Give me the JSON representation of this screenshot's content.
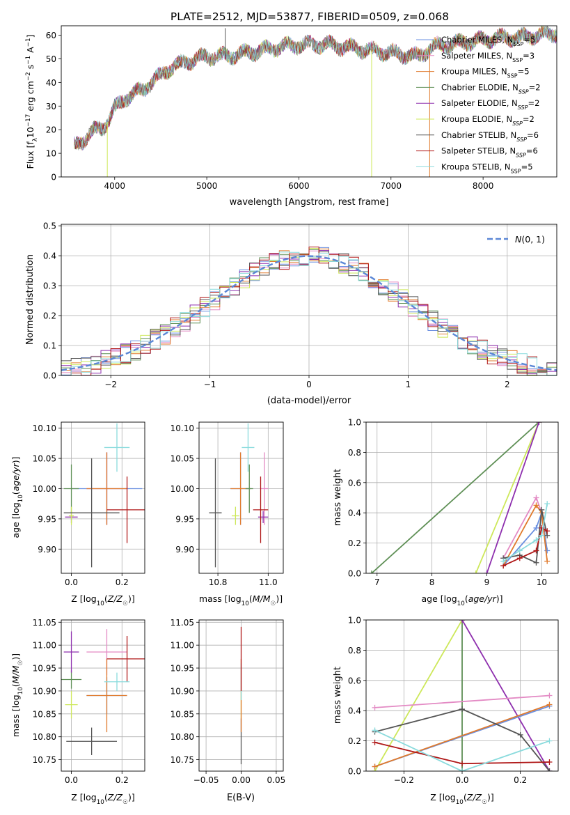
{
  "figure_title": "PLATE=2512, MJD=53877, FIBERID=0509, z=0.068",
  "colors": {
    "Chabrier MILES": "#6a8fe0",
    "Salpeter MILES": "#e38ac4",
    "Kroupa MILES": "#e07a2c",
    "Chabrier ELODIE": "#5e8f55",
    "Salpeter ELODIE": "#8e2fae",
    "Kroupa ELODIE": "#cde85a",
    "Chabrier STELIB": "#555555",
    "Salpeter STELIB": "#b01818",
    "Kroupa STELIB": "#8adbdd"
  },
  "chart_data": [
    {
      "id": "spectrum",
      "type": "line",
      "title": "PLATE=2512, MJD=53877, FIBERID=0509, z=0.068",
      "xlabel": "wavelength [Angstrom, rest frame]",
      "ylabel": "Flux [f_λ 10^-17 erg cm^-2 s^-1 A^-1]",
      "xlim": [
        3420,
        8800
      ],
      "ylim": [
        0,
        64
      ],
      "xticks": [
        4000,
        5000,
        6000,
        7000,
        8000
      ],
      "yticks": [
        0,
        10,
        20,
        30,
        40,
        50,
        60
      ],
      "grid": false,
      "legend_position": "top-right",
      "legend": [
        "Chabrier MILES, N_SSP=5",
        "Salpeter MILES, N_SSP=3",
        "Kroupa MILES, N_SSP=5",
        "Chabrier ELODIE, N_SSP=2",
        "Salpeter ELODIE, N_SSP=2",
        "Kroupa ELODIE, N_SSP=2",
        "Chabrier STELIB, N_SSP=6",
        "Salpeter STELIB, N_SSP=6",
        "Kroupa STELIB, N_SSP=5"
      ],
      "continuum": {
        "x": [
          3560,
          3700,
          3800,
          3900,
          3950,
          4000,
          4100,
          4200,
          4300,
          4400,
          4500,
          4600,
          4800,
          5000,
          5200,
          5500,
          5800,
          6000,
          6300,
          6500,
          6700,
          6900,
          7100,
          7300,
          7450,
          7600,
          7800,
          8000,
          8200,
          8400,
          8600,
          8800
        ],
        "y": [
          13,
          17,
          20,
          22,
          25,
          29,
          33,
          35,
          37,
          40,
          43,
          46,
          49,
          51,
          51,
          53,
          55,
          56,
          56,
          55,
          54,
          53,
          52,
          51,
          55,
          56,
          57,
          58,
          59,
          59,
          60,
          61
        ]
      },
      "features": [
        {
          "x": 3920,
          "y": 0
        },
        {
          "x": 5200,
          "y": 63
        },
        {
          "x": 6790,
          "y": 0
        },
        {
          "x": 7420,
          "y": 0
        }
      ]
    },
    {
      "id": "residuals",
      "type": "line",
      "xlabel": "(data-model)/error",
      "ylabel": "Normed distribution",
      "xlim": [
        -2.5,
        2.5
      ],
      "ylim": [
        0,
        0.505
      ],
      "xticks": [
        -2,
        -1,
        0,
        1,
        2
      ],
      "yticks": [
        0.0,
        0.1,
        0.2,
        0.3,
        0.4,
        0.5
      ],
      "grid": true,
      "legend_position": "top-right",
      "legend": [
        "N(0,1)"
      ],
      "bin_width": 0.1,
      "note": "nine step histograms scattered around the standard normal curve"
    },
    {
      "id": "age_vs_Z",
      "type": "scatter",
      "xlabel": "Z [log10(Z/Z☉)]",
      "ylabel": "age [log10(age/yr)]",
      "xlim": [
        -0.04,
        0.29
      ],
      "ylim": [
        9.86,
        10.11
      ],
      "xticks": [
        0.0,
        0.2
      ],
      "yticks": [
        9.9,
        9.95,
        10.0,
        10.05,
        10.1
      ],
      "grid": true,
      "points": [
        {
          "model": "Chabrier MILES",
          "x": 0.14,
          "y": 10.0,
          "xerr": 0.14,
          "yerr": 0.06
        },
        {
          "model": "Salpeter MILES",
          "x": 0.14,
          "y": 10.0,
          "xerr": 0.08,
          "yerr": 0.06
        },
        {
          "model": "Kroupa MILES",
          "x": 0.14,
          "y": 10.0,
          "xerr": 0.08,
          "yerr": 0.06
        },
        {
          "model": "Chabrier ELODIE",
          "x": 0.0,
          "y": 10.0,
          "xerr": 0.03,
          "yerr": 0.04
        },
        {
          "model": "Salpeter ELODIE",
          "x": 0.0,
          "y": 9.953,
          "xerr": 0.025,
          "yerr": 0.01
        },
        {
          "model": "Kroupa ELODIE",
          "x": 0.0,
          "y": 9.955,
          "xerr": 0.01,
          "yerr": 0.015
        },
        {
          "model": "Chabrier STELIB",
          "x": 0.08,
          "y": 9.96,
          "xerr": 0.11,
          "yerr": 0.09
        },
        {
          "model": "Salpeter STELIB",
          "x": 0.22,
          "y": 9.965,
          "xerr": 0.08,
          "yerr": 0.055
        },
        {
          "model": "Kroupa STELIB",
          "x": 0.18,
          "y": 10.068,
          "xerr": 0.05,
          "yerr": 0.04
        }
      ]
    },
    {
      "id": "age_vs_mass",
      "type": "scatter",
      "xlabel": "mass [log10(M/M☉)]",
      "ylabel": "",
      "xlim": [
        10.725,
        11.06
      ],
      "ylim": [
        9.86,
        10.11
      ],
      "xticks": [
        10.8,
        11.0
      ],
      "yticks": [
        9.9,
        9.95,
        10.0,
        10.05,
        10.1
      ],
      "grid": true,
      "points": [
        {
          "model": "Chabrier MILES",
          "x": 10.89,
          "y": 10.0,
          "xerr": 0.04,
          "yerr": 0.06
        },
        {
          "model": "Salpeter MILES",
          "x": 10.985,
          "y": 10.0,
          "xerr": 0.015,
          "yerr": 0.06
        },
        {
          "model": "Kroupa MILES",
          "x": 10.89,
          "y": 10.0,
          "xerr": 0.04,
          "yerr": 0.06
        },
        {
          "model": "Chabrier ELODIE",
          "x": 10.925,
          "y": 10.0,
          "xerr": 0.015,
          "yerr": 0.04
        },
        {
          "model": "Salpeter ELODIE",
          "x": 10.98,
          "y": 9.953,
          "xerr": 0.02,
          "yerr": 0.01
        },
        {
          "model": "Kroupa ELODIE",
          "x": 10.87,
          "y": 9.955,
          "xerr": 0.015,
          "yerr": 0.015
        },
        {
          "model": "Chabrier STELIB",
          "x": 10.79,
          "y": 9.96,
          "xerr": 0.025,
          "yerr": 0.09
        },
        {
          "model": "Salpeter STELIB",
          "x": 10.97,
          "y": 9.965,
          "xerr": 0.03,
          "yerr": 0.055
        },
        {
          "model": "Kroupa STELIB",
          "x": 10.92,
          "y": 10.068,
          "xerr": 0.025,
          "yerr": 0.04
        }
      ]
    },
    {
      "id": "weight_vs_age",
      "type": "line",
      "xlabel": "age [log10(age/yr)]",
      "ylabel": "mass weight",
      "xlim": [
        6.8,
        10.3
      ],
      "ylim": [
        0,
        1.0
      ],
      "xticks": [
        7,
        8,
        9,
        10
      ],
      "yticks": [
        0.0,
        0.2,
        0.4,
        0.6,
        0.8,
        1.0
      ],
      "grid": true,
      "series": [
        {
          "model": "Chabrier ELODIE",
          "x": [
            6.9,
            9.95
          ],
          "y": [
            0.0,
            1.0
          ]
        },
        {
          "model": "Kroupa ELODIE",
          "x": [
            8.8,
            9.95
          ],
          "y": [
            0.0,
            1.0
          ]
        },
        {
          "model": "Salpeter ELODIE",
          "x": [
            9.0,
            9.95
          ],
          "y": [
            0.0,
            1.0
          ]
        },
        {
          "model": "Chabrier MILES",
          "x": [
            9.3,
            9.9,
            10.0,
            10.1
          ],
          "y": [
            0.05,
            0.3,
            0.4,
            0.15
          ]
        },
        {
          "model": "Salpeter MILES",
          "x": [
            9.3,
            9.9,
            10.0
          ],
          "y": [
            0.1,
            0.5,
            0.4
          ]
        },
        {
          "model": "Kroupa MILES",
          "x": [
            9.3,
            9.9,
            10.0,
            10.1
          ],
          "y": [
            0.05,
            0.45,
            0.4,
            0.08
          ]
        },
        {
          "model": "Chabrier STELIB",
          "x": [
            9.3,
            9.6,
            9.9,
            10.0,
            10.1
          ],
          "y": [
            0.1,
            0.12,
            0.07,
            0.42,
            0.25
          ]
        },
        {
          "model": "Salpeter STELIB",
          "x": [
            9.3,
            9.6,
            9.9,
            10.0,
            10.1
          ],
          "y": [
            0.05,
            0.1,
            0.15,
            0.3,
            0.28
          ]
        },
        {
          "model": "Kroupa STELIB",
          "x": [
            9.3,
            9.6,
            9.9,
            10.0,
            10.1
          ],
          "y": [
            0.08,
            0.15,
            0.22,
            0.25,
            0.46
          ]
        }
      ]
    },
    {
      "id": "mass_vs_Z",
      "type": "scatter",
      "xlabel": "Z [log10(Z/Z☉)]",
      "ylabel": "mass [log10(M/M☉)]",
      "xlim": [
        -0.04,
        0.29
      ],
      "ylim": [
        10.725,
        11.055
      ],
      "xticks": [
        0.0,
        0.2
      ],
      "yticks": [
        10.75,
        10.8,
        10.85,
        10.9,
        10.95,
        11.0,
        11.05
      ],
      "grid": true,
      "points": [
        {
          "model": "Chabrier MILES",
          "x": 0.14,
          "y": 10.89,
          "xerr": 0.08,
          "yerr": 0.04
        },
        {
          "model": "Salpeter MILES",
          "x": 0.14,
          "y": 10.985,
          "xerr": 0.08,
          "yerr": 0.05
        },
        {
          "model": "Kroupa MILES",
          "x": 0.14,
          "y": 10.89,
          "xerr": 0.08,
          "yerr": 0.08
        },
        {
          "model": "Chabrier ELODIE",
          "x": 0.0,
          "y": 10.925,
          "xerr": 0.04,
          "yerr": 0.02
        },
        {
          "model": "Salpeter ELODIE",
          "x": 0.0,
          "y": 10.985,
          "xerr": 0.03,
          "yerr": 0.045
        },
        {
          "model": "Kroupa ELODIE",
          "x": 0.0,
          "y": 10.87,
          "xerr": 0.025,
          "yerr": 0.03
        },
        {
          "model": "Chabrier STELIB",
          "x": 0.08,
          "y": 10.79,
          "xerr": 0.1,
          "yerr": 0.03
        },
        {
          "model": "Salpeter STELIB",
          "x": 0.22,
          "y": 10.97,
          "xerr": 0.08,
          "yerr": 0.05
        },
        {
          "model": "Kroupa STELIB",
          "x": 0.18,
          "y": 10.92,
          "xerr": 0.05,
          "yerr": 0.02
        }
      ]
    },
    {
      "id": "mass_vs_EBV",
      "type": "scatter",
      "xlabel": "E(B-V)",
      "ylabel": "",
      "xlim": [
        -0.06,
        0.06
      ],
      "ylim": [
        10.725,
        11.055
      ],
      "xticks": [
        -0.05,
        0.0,
        0.05
      ],
      "yticks": [
        10.75,
        10.8,
        10.85,
        10.9,
        10.95,
        11.0,
        11.05
      ],
      "grid": true,
      "points": [
        {
          "model": "Chabrier STELIB",
          "x": 0.0,
          "y": 10.79,
          "yerr": 0.05
        },
        {
          "model": "Kroupa ELODIE",
          "x": 0.0,
          "y": 10.87,
          "yerr": 0.03
        },
        {
          "model": "Kroupa MILES",
          "x": 0.0,
          "y": 10.89,
          "yerr": 0.08
        },
        {
          "model": "Kroupa STELIB",
          "x": 0.0,
          "y": 10.92,
          "yerr": 0.04
        },
        {
          "model": "Salpeter STELIB",
          "x": 0.0,
          "y": 10.97,
          "yerr": 0.07
        }
      ]
    },
    {
      "id": "weight_vs_Z",
      "type": "line",
      "xlabel": "Z [log10(Z/Z☉)]",
      "ylabel": "mass weight",
      "xlim": [
        -0.33,
        0.33
      ],
      "ylim": [
        0,
        1.0
      ],
      "xticks": [
        -0.2,
        0.0,
        0.2
      ],
      "yticks": [
        0.0,
        0.2,
        0.4,
        0.6,
        0.8,
        1.0
      ],
      "grid": true,
      "series": [
        {
          "model": "Chabrier ELODIE",
          "x": [
            0.0,
            0.0
          ],
          "y": [
            0.0,
            1.0
          ]
        },
        {
          "model": "Kroupa ELODIE",
          "x": [
            -0.3,
            0.0
          ],
          "y": [
            0.0,
            1.0
          ]
        },
        {
          "model": "Salpeter ELODIE",
          "x": [
            0.0,
            0.3
          ],
          "y": [
            1.0,
            0.0
          ]
        },
        {
          "model": "Salpeter MILES",
          "x": [
            -0.3,
            0.3
          ],
          "y": [
            0.42,
            0.5
          ]
        },
        {
          "model": "Chabrier MILES",
          "x": [
            -0.3,
            0.3
          ],
          "y": [
            0.03,
            0.43
          ]
        },
        {
          "model": "Kroupa MILES",
          "x": [
            -0.3,
            0.3
          ],
          "y": [
            0.03,
            0.44
          ]
        },
        {
          "model": "Chabrier STELIB",
          "x": [
            -0.3,
            0.0,
            0.2,
            0.3
          ],
          "y": [
            0.26,
            0.41,
            0.24,
            0.0
          ]
        },
        {
          "model": "Salpeter STELIB",
          "x": [
            -0.3,
            0.0,
            0.3
          ],
          "y": [
            0.19,
            0.05,
            0.06
          ]
        },
        {
          "model": "Kroupa STELIB",
          "x": [
            -0.3,
            0.0,
            0.3
          ],
          "y": [
            0.27,
            0.0,
            0.2
          ]
        }
      ]
    }
  ]
}
